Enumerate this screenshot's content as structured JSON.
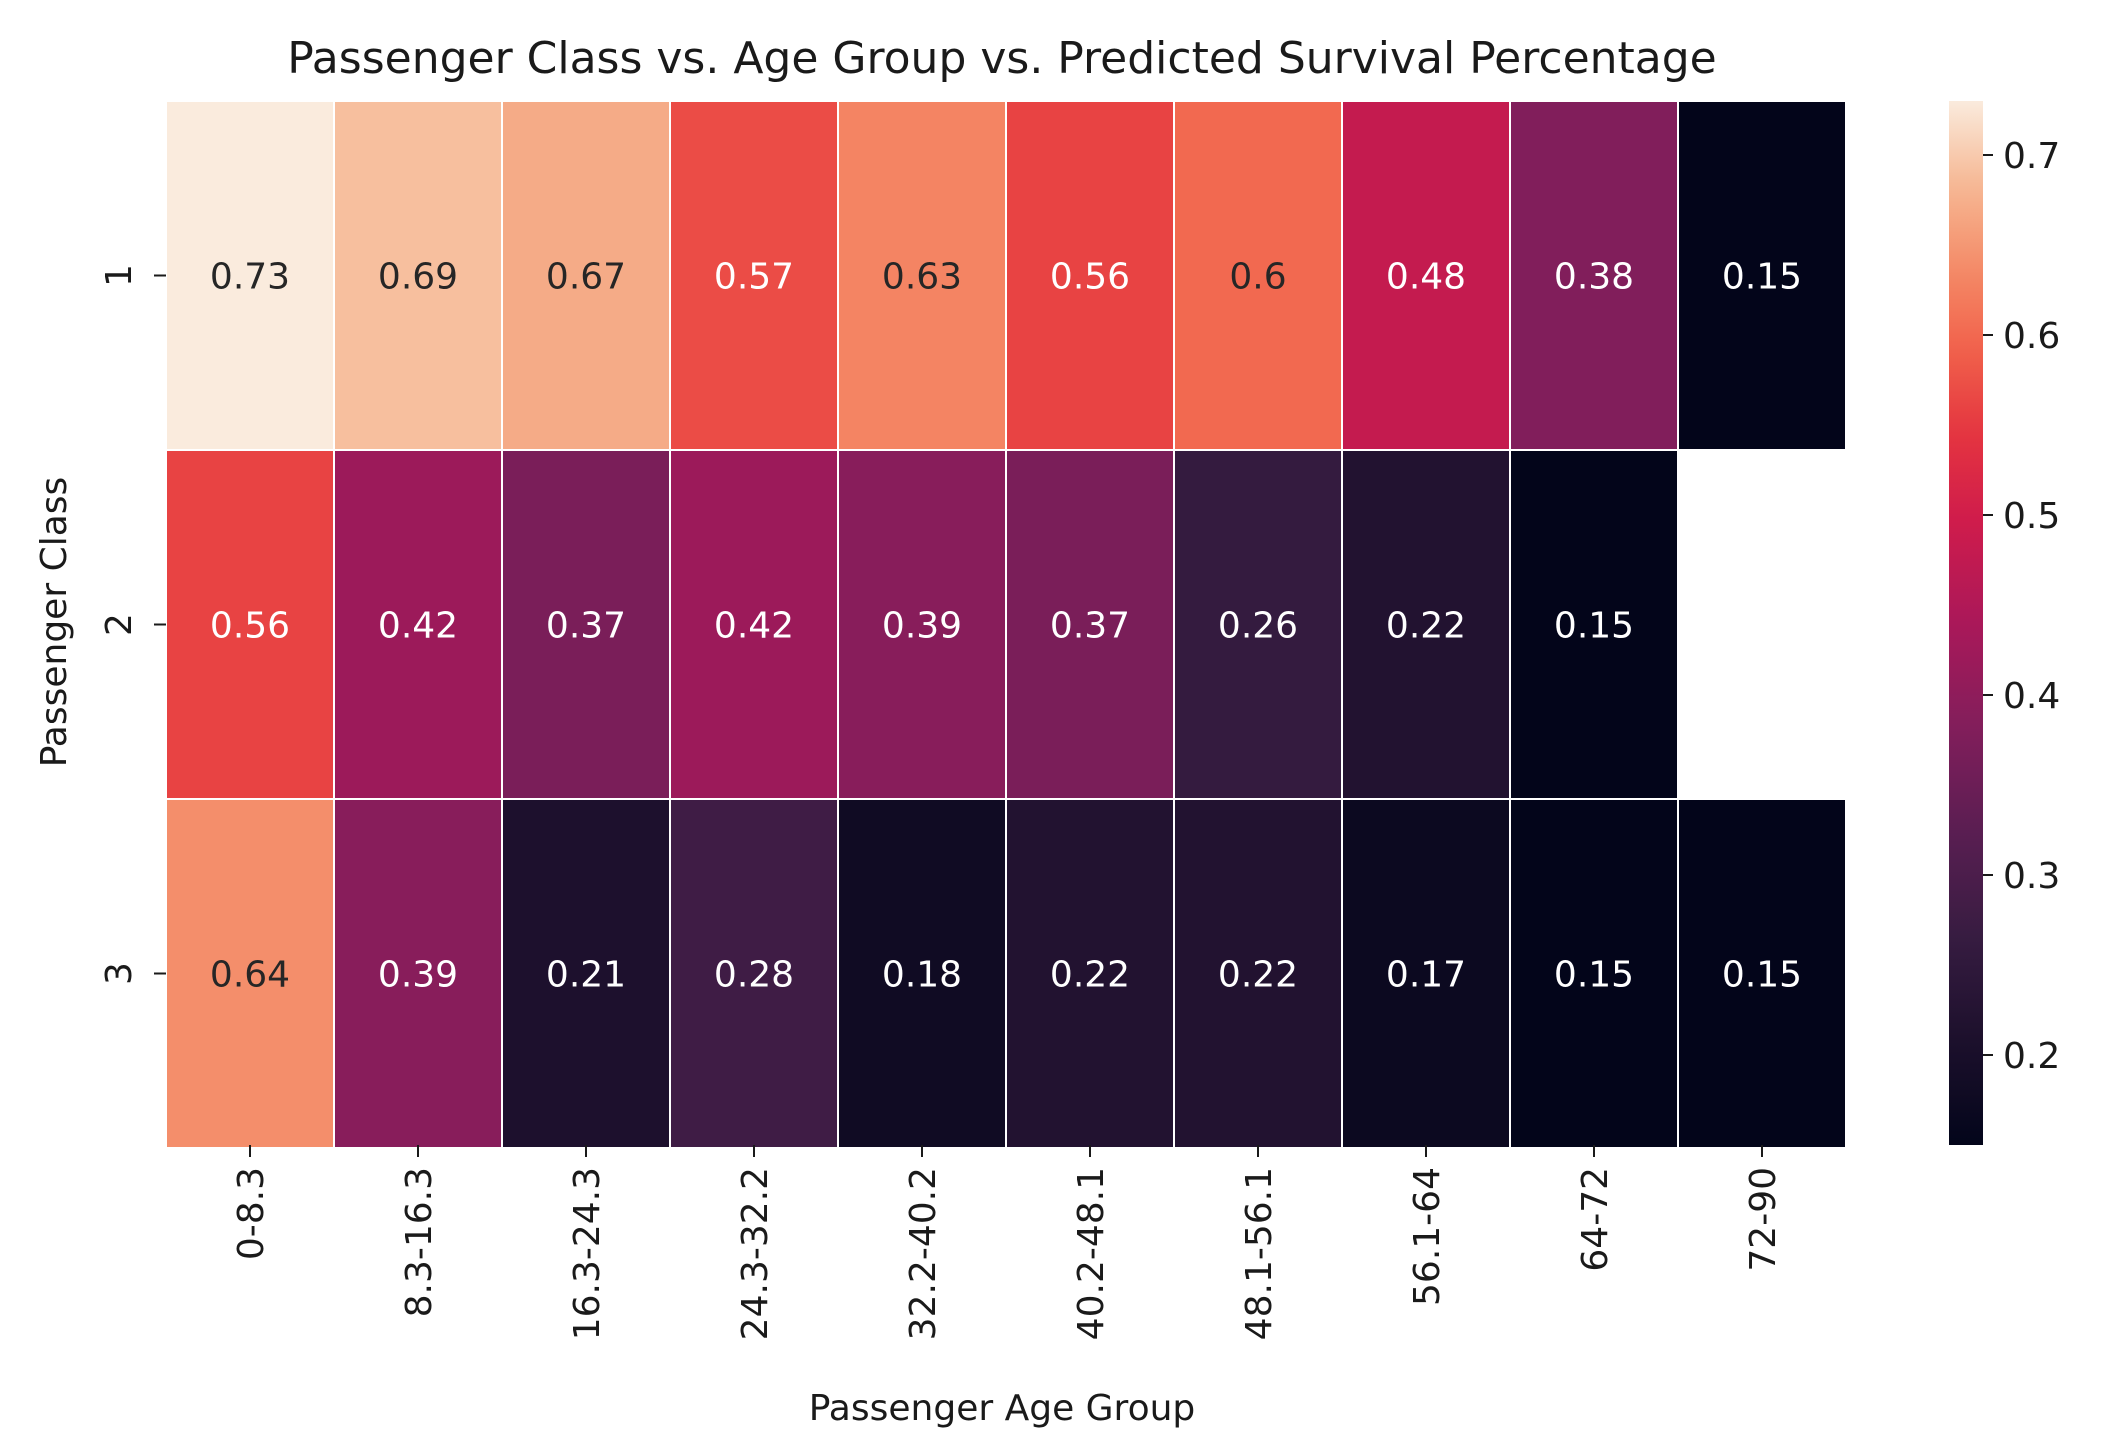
{
  "chart_data": {
    "type": "heatmap",
    "title": "Passenger Class vs. Age Group vs. Predicted Survival Percentage",
    "xlabel": "Passenger Age Group",
    "ylabel": "Passenger Class",
    "x_categories": [
      "0-8.3",
      "8.3-16.3",
      "16.3-24.3",
      "24.3-32.2",
      "32.2-40.2",
      "40.2-48.1",
      "48.1-56.1",
      "56.1-64",
      "64-72",
      "72-90"
    ],
    "y_categories": [
      "1",
      "2",
      "3"
    ],
    "values": [
      [
        0.73,
        0.69,
        0.67,
        0.57,
        0.63,
        0.56,
        0.6,
        0.48,
        0.38,
        0.15
      ],
      [
        0.56,
        0.42,
        0.37,
        0.42,
        0.39,
        0.37,
        0.26,
        0.22,
        0.15,
        null
      ],
      [
        0.64,
        0.39,
        0.21,
        0.28,
        0.18,
        0.22,
        0.22,
        0.17,
        0.15,
        0.15
      ]
    ],
    "value_labels": [
      [
        "0.73",
        "0.69",
        "0.67",
        "0.57",
        "0.63",
        "0.56",
        "0.6",
        "0.48",
        "0.38",
        "0.15"
      ],
      [
        "0.56",
        "0.42",
        "0.37",
        "0.42",
        "0.39",
        "0.37",
        "0.26",
        "0.22",
        "0.15",
        ""
      ],
      [
        "0.64",
        "0.39",
        "0.21",
        "0.28",
        "0.18",
        "0.22",
        "0.22",
        "0.17",
        "0.15",
        "0.15"
      ]
    ],
    "colorbar": {
      "range": [
        0.15,
        0.73
      ],
      "ticks": [
        "0.2",
        "0.3",
        "0.4",
        "0.5",
        "0.6",
        "0.7"
      ],
      "colormap": "rocket"
    },
    "grid": false
  }
}
